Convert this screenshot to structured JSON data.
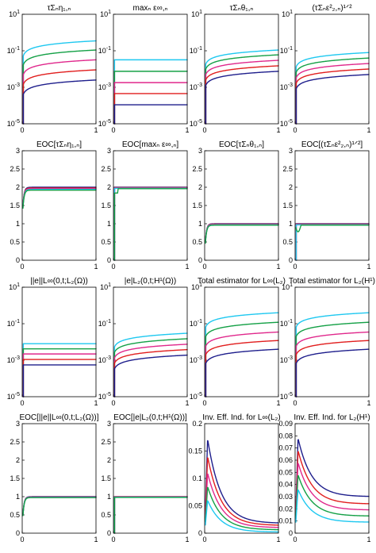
{
  "colors": {
    "s1": "#1e1e8c",
    "s2": "#e11e1e",
    "s3": "#e0288c",
    "s4": "#14a046",
    "s5": "#1ec8f0"
  },
  "chart_data": [
    {
      "type": "line",
      "title": "τΣₙη₁,ₙ",
      "scale": "log",
      "ylim": [
        1e-05,
        10
      ],
      "yticks": [
        "10",
        "10",
        "10",
        "10"
      ],
      "yexp": [
        "1",
        "-1",
        "-3",
        "-5"
      ],
      "xticks": [
        "0",
        "1"
      ],
      "series": [
        {
          "color": "s5",
          "shape": "growth",
          "a": 0.35,
          "b": 0.012
        },
        {
          "color": "s4",
          "shape": "growth",
          "a": 0.11,
          "b": 0.004
        },
        {
          "color": "s3",
          "shape": "growth",
          "a": 0.032,
          "b": 0.0012
        },
        {
          "color": "s2",
          "shape": "growth",
          "a": 0.009,
          "b": 0.0004
        },
        {
          "color": "s1",
          "shape": "growth",
          "a": 0.0025,
          "b": 0.00012
        }
      ]
    },
    {
      "type": "line",
      "title": "maxₙ ε∞,ₙ",
      "scale": "log",
      "ylim": [
        1e-05,
        10
      ],
      "yticks": [
        "10",
        "10",
        "10",
        "10"
      ],
      "yexp": [
        "1",
        "-1",
        "-3",
        "-5"
      ],
      "xticks": [
        "0",
        "1"
      ],
      "series": [
        {
          "color": "s5",
          "shape": "flat",
          "a": 0.032
        },
        {
          "color": "s4",
          "shape": "flat",
          "a": 0.0075
        },
        {
          "color": "s3",
          "shape": "flat",
          "a": 0.0018
        },
        {
          "color": "s2",
          "shape": "flat",
          "a": 0.00045
        },
        {
          "color": "s1",
          "shape": "flat",
          "a": 0.00011
        }
      ]
    },
    {
      "type": "line",
      "title": "τΣₙθ₁,ₙ",
      "scale": "log",
      "ylim": [
        1e-05,
        10
      ],
      "yticks": [
        "10",
        "10",
        "10",
        "10"
      ],
      "yexp": [
        "1",
        "-1",
        "-3",
        "-5"
      ],
      "xticks": [
        "0",
        "1"
      ],
      "series": [
        {
          "color": "s5",
          "shape": "growth",
          "a": 0.11,
          "b": 0.006
        },
        {
          "color": "s4",
          "shape": "growth",
          "a": 0.06,
          "b": 0.003
        },
        {
          "color": "s3",
          "shape": "growth",
          "a": 0.03,
          "b": 0.0015
        },
        {
          "color": "s2",
          "shape": "growth",
          "a": 0.015,
          "b": 0.0008
        },
        {
          "color": "s1",
          "shape": "growth",
          "a": 0.0075,
          "b": 0.0004
        }
      ]
    },
    {
      "type": "line",
      "title": "(τΣₙε²₂,ₙ)¹ᐟ²",
      "scale": "log",
      "ylim": [
        1e-05,
        10
      ],
      "yticks": [
        "10",
        "10",
        "10",
        "10"
      ],
      "yexp": [
        "1",
        "-1",
        "-3",
        "-5"
      ],
      "xticks": [
        "0",
        "1"
      ],
      "series": [
        {
          "color": "s5",
          "shape": "growth",
          "a": 0.08,
          "b": 0.004
        },
        {
          "color": "s4",
          "shape": "growth",
          "a": 0.04,
          "b": 0.002
        },
        {
          "color": "s3",
          "shape": "growth",
          "a": 0.02,
          "b": 0.001
        },
        {
          "color": "s2",
          "shape": "growth",
          "a": 0.01,
          "b": 0.0005
        },
        {
          "color": "s1",
          "shape": "growth",
          "a": 0.005,
          "b": 0.00025
        }
      ]
    },
    {
      "type": "line",
      "title": "EOC[τΣₙη₁,ₙ]",
      "scale": "linear",
      "ylim": [
        0,
        3
      ],
      "yticks": [
        "0",
        "0.5",
        "1",
        "1.5",
        "2",
        "2.5",
        "3"
      ],
      "xticks": [
        "0",
        "1"
      ],
      "series": [
        {
          "color": "s1",
          "shape": "eoc",
          "v": 2.0
        },
        {
          "color": "s2",
          "shape": "eoc",
          "v": 1.98
        },
        {
          "color": "s3",
          "shape": "eoc",
          "v": 1.96
        },
        {
          "color": "s5",
          "shape": "eoc",
          "v": 1.94
        },
        {
          "color": "s4",
          "shape": "eoc",
          "v": 1.92
        }
      ]
    },
    {
      "type": "line",
      "title": "EOC[maxₙ ε∞,ₙ]",
      "scale": "linear",
      "ylim": [
        0,
        3
      ],
      "yticks": [
        "0",
        "0.5",
        "1",
        "1.5",
        "2",
        "2.5",
        "3"
      ],
      "xticks": [
        "0",
        "1"
      ],
      "series": [
        {
          "color": "s1",
          "shape": "flat",
          "a": 2.0
        },
        {
          "color": "s2",
          "shape": "flat",
          "a": 1.99
        },
        {
          "color": "s3",
          "shape": "flat",
          "a": 1.98
        },
        {
          "color": "s5",
          "shape": "flat",
          "a": 1.97
        },
        {
          "color": "s4",
          "shape": "eocstep",
          "v": 1.96
        }
      ]
    },
    {
      "type": "line",
      "title": "EOC[τΣₙθ₁,ₙ]",
      "scale": "linear",
      "ylim": [
        0,
        3
      ],
      "yticks": [
        "0",
        "0.5",
        "1",
        "1.5",
        "2",
        "2.5",
        "3"
      ],
      "xticks": [
        "0",
        "1"
      ],
      "series": [
        {
          "color": "s1",
          "shape": "eoc",
          "v": 1.0
        },
        {
          "color": "s2",
          "shape": "eoc",
          "v": 0.99
        },
        {
          "color": "s3",
          "shape": "eoc",
          "v": 0.98
        },
        {
          "color": "s5",
          "shape": "eoc",
          "v": 0.97
        },
        {
          "color": "s4",
          "shape": "eoc",
          "v": 0.96
        }
      ]
    },
    {
      "type": "line",
      "title": "EOC[(τΣₙε²₂,ₙ)¹ᐟ²]",
      "scale": "linear",
      "ylim": [
        0,
        3
      ],
      "yticks": [
        "0",
        "0.5",
        "1",
        "1.5",
        "2",
        "2.5",
        "3"
      ],
      "xticks": [
        "0",
        "1"
      ],
      "series": [
        {
          "color": "s1",
          "shape": "flat",
          "a": 1.0
        },
        {
          "color": "s2",
          "shape": "flat",
          "a": 0.99
        },
        {
          "color": "s3",
          "shape": "flat",
          "a": 0.98
        },
        {
          "color": "s5",
          "shape": "flat",
          "a": 0.97
        },
        {
          "color": "s4",
          "shape": "eocdip",
          "v": 0.96
        }
      ]
    },
    {
      "type": "line",
      "title": "||e||L∞(0,t;L₂(Ω))",
      "scale": "log",
      "ylim": [
        1e-05,
        10
      ],
      "yticks": [
        "10",
        "10",
        "10",
        "10"
      ],
      "yexp": [
        "1",
        "-1",
        "-3",
        "-5"
      ],
      "xticks": [
        "0",
        "1"
      ],
      "series": [
        {
          "color": "s5",
          "shape": "flat",
          "a": 0.008
        },
        {
          "color": "s4",
          "shape": "flat",
          "a": 0.0042
        },
        {
          "color": "s3",
          "shape": "flat",
          "a": 0.0022
        },
        {
          "color": "s2",
          "shape": "flat",
          "a": 0.0011
        },
        {
          "color": "s1",
          "shape": "flat",
          "a": 0.00055
        }
      ]
    },
    {
      "type": "line",
      "title": "|e|L₂(0,t;H¹(Ω))",
      "scale": "log",
      "ylim": [
        1e-05,
        10
      ],
      "yticks": [
        "10",
        "10",
        "10",
        "10"
      ],
      "yexp": [
        "1",
        "-1",
        "-3",
        "-5"
      ],
      "xticks": [
        "0",
        "1"
      ],
      "series": [
        {
          "color": "s5",
          "shape": "growth",
          "a": 0.03,
          "b": 0.002
        },
        {
          "color": "s4",
          "shape": "growth",
          "a": 0.015,
          "b": 0.001
        },
        {
          "color": "s3",
          "shape": "growth",
          "a": 0.0075,
          "b": 0.0005
        },
        {
          "color": "s2",
          "shape": "growth",
          "a": 0.0038,
          "b": 0.00025
        },
        {
          "color": "s1",
          "shape": "growth",
          "a": 0.0019,
          "b": 0.00012
        }
      ]
    },
    {
      "type": "line",
      "title": "Total estimator for L∞(L₂)",
      "scale": "log",
      "ylim": [
        1e-05,
        10
      ],
      "yticks": [
        "10",
        "10",
        "10",
        "10"
      ],
      "yexp": [
        "1",
        "-1",
        "-3",
        "-5"
      ],
      "xticks": [
        "0",
        "1"
      ],
      "series": [
        {
          "color": "s5",
          "shape": "growth",
          "a": 0.4,
          "b": 0.02
        },
        {
          "color": "s4",
          "shape": "growth",
          "a": 0.12,
          "b": 0.006
        },
        {
          "color": "s3",
          "shape": "growth",
          "a": 0.035,
          "b": 0.0018
        },
        {
          "color": "s2",
          "shape": "growth",
          "a": 0.012,
          "b": 0.0006
        },
        {
          "color": "s1",
          "shape": "growth",
          "a": 0.004,
          "b": 0.0002
        }
      ]
    },
    {
      "type": "line",
      "title": "Total estimator for L₂(H¹)",
      "scale": "log",
      "ylim": [
        1e-05,
        10
      ],
      "yticks": [
        "10",
        "10",
        "10",
        "10"
      ],
      "yexp": [
        "1",
        "-1",
        "-3",
        "-5"
      ],
      "xticks": [
        "0",
        "1"
      ],
      "series": [
        {
          "color": "s5",
          "shape": "growth",
          "a": 0.4,
          "b": 0.02
        },
        {
          "color": "s4",
          "shape": "growth",
          "a": 0.12,
          "b": 0.006
        },
        {
          "color": "s3",
          "shape": "growth",
          "a": 0.035,
          "b": 0.0018
        },
        {
          "color": "s2",
          "shape": "growth",
          "a": 0.012,
          "b": 0.0006
        },
        {
          "color": "s1",
          "shape": "growth",
          "a": 0.004,
          "b": 0.0002
        }
      ]
    },
    {
      "type": "line",
      "title": "EOC[||e||L∞(0,t;L₂(Ω))]",
      "scale": "linear",
      "ylim": [
        0,
        3
      ],
      "yticks": [
        "0",
        "0.5",
        "1",
        "1.5",
        "2",
        "2.5",
        "3"
      ],
      "xticks": [
        "0",
        "1"
      ],
      "series": [
        {
          "color": "s1",
          "shape": "eoc",
          "v": 1.0
        },
        {
          "color": "s2",
          "shape": "eoc",
          "v": 0.99
        },
        {
          "color": "s3",
          "shape": "eoc",
          "v": 0.985
        },
        {
          "color": "s5",
          "shape": "eoc",
          "v": 0.98
        },
        {
          "color": "s4",
          "shape": "eoc",
          "v": 0.975
        }
      ]
    },
    {
      "type": "line",
      "title": "EOC[|e|L₂(0,t;H¹(Ω))]",
      "scale": "linear",
      "ylim": [
        0,
        3
      ],
      "yticks": [
        "0",
        "0.5",
        "1",
        "1.5",
        "2",
        "2.5",
        "3"
      ],
      "xticks": [
        "0",
        "1"
      ],
      "series": [
        {
          "color": "s1",
          "shape": "flat",
          "a": 1.0
        },
        {
          "color": "s2",
          "shape": "flat",
          "a": 0.995
        },
        {
          "color": "s3",
          "shape": "flat",
          "a": 0.99
        },
        {
          "color": "s5",
          "shape": "flat",
          "a": 0.985
        },
        {
          "color": "s4",
          "shape": "flat",
          "a": 0.98
        }
      ]
    },
    {
      "type": "line",
      "title": "Inv. Eff. Ind. for L∞(L₂)",
      "scale": "linear",
      "ylim": [
        0,
        0.2
      ],
      "yticks": [
        "0",
        "0.05",
        "0.1",
        "0.15",
        "0.2"
      ],
      "xticks": [
        "0",
        "1"
      ],
      "series": [
        {
          "color": "s1",
          "shape": "peak",
          "p": 0.172,
          "e": 0.018
        },
        {
          "color": "s2",
          "shape": "peak",
          "p": 0.14,
          "e": 0.014
        },
        {
          "color": "s3",
          "shape": "peak",
          "p": 0.11,
          "e": 0.01
        },
        {
          "color": "s4",
          "shape": "peak",
          "p": 0.085,
          "e": 0.006
        },
        {
          "color": "s5",
          "shape": "peak",
          "p": 0.06,
          "e": 0.002
        }
      ]
    },
    {
      "type": "line",
      "title": "Inv. Eff. Ind. for L₂(H¹)",
      "scale": "linear",
      "ylim": [
        0,
        0.09
      ],
      "yticks": [
        "0",
        "0.01",
        "0.02",
        "0.03",
        "0.04",
        "0.05",
        "0.06",
        "0.07",
        "0.08",
        "0.09"
      ],
      "xticks": [
        "0",
        "1"
      ],
      "series": [
        {
          "color": "s1",
          "shape": "peak",
          "p": 0.078,
          "e": 0.03
        },
        {
          "color": "s2",
          "shape": "peak",
          "p": 0.068,
          "e": 0.024
        },
        {
          "color": "s3",
          "shape": "peak",
          "p": 0.058,
          "e": 0.019
        },
        {
          "color": "s4",
          "shape": "peak",
          "p": 0.048,
          "e": 0.014
        },
        {
          "color": "s5",
          "shape": "peak",
          "p": 0.036,
          "e": 0.009
        }
      ]
    }
  ]
}
